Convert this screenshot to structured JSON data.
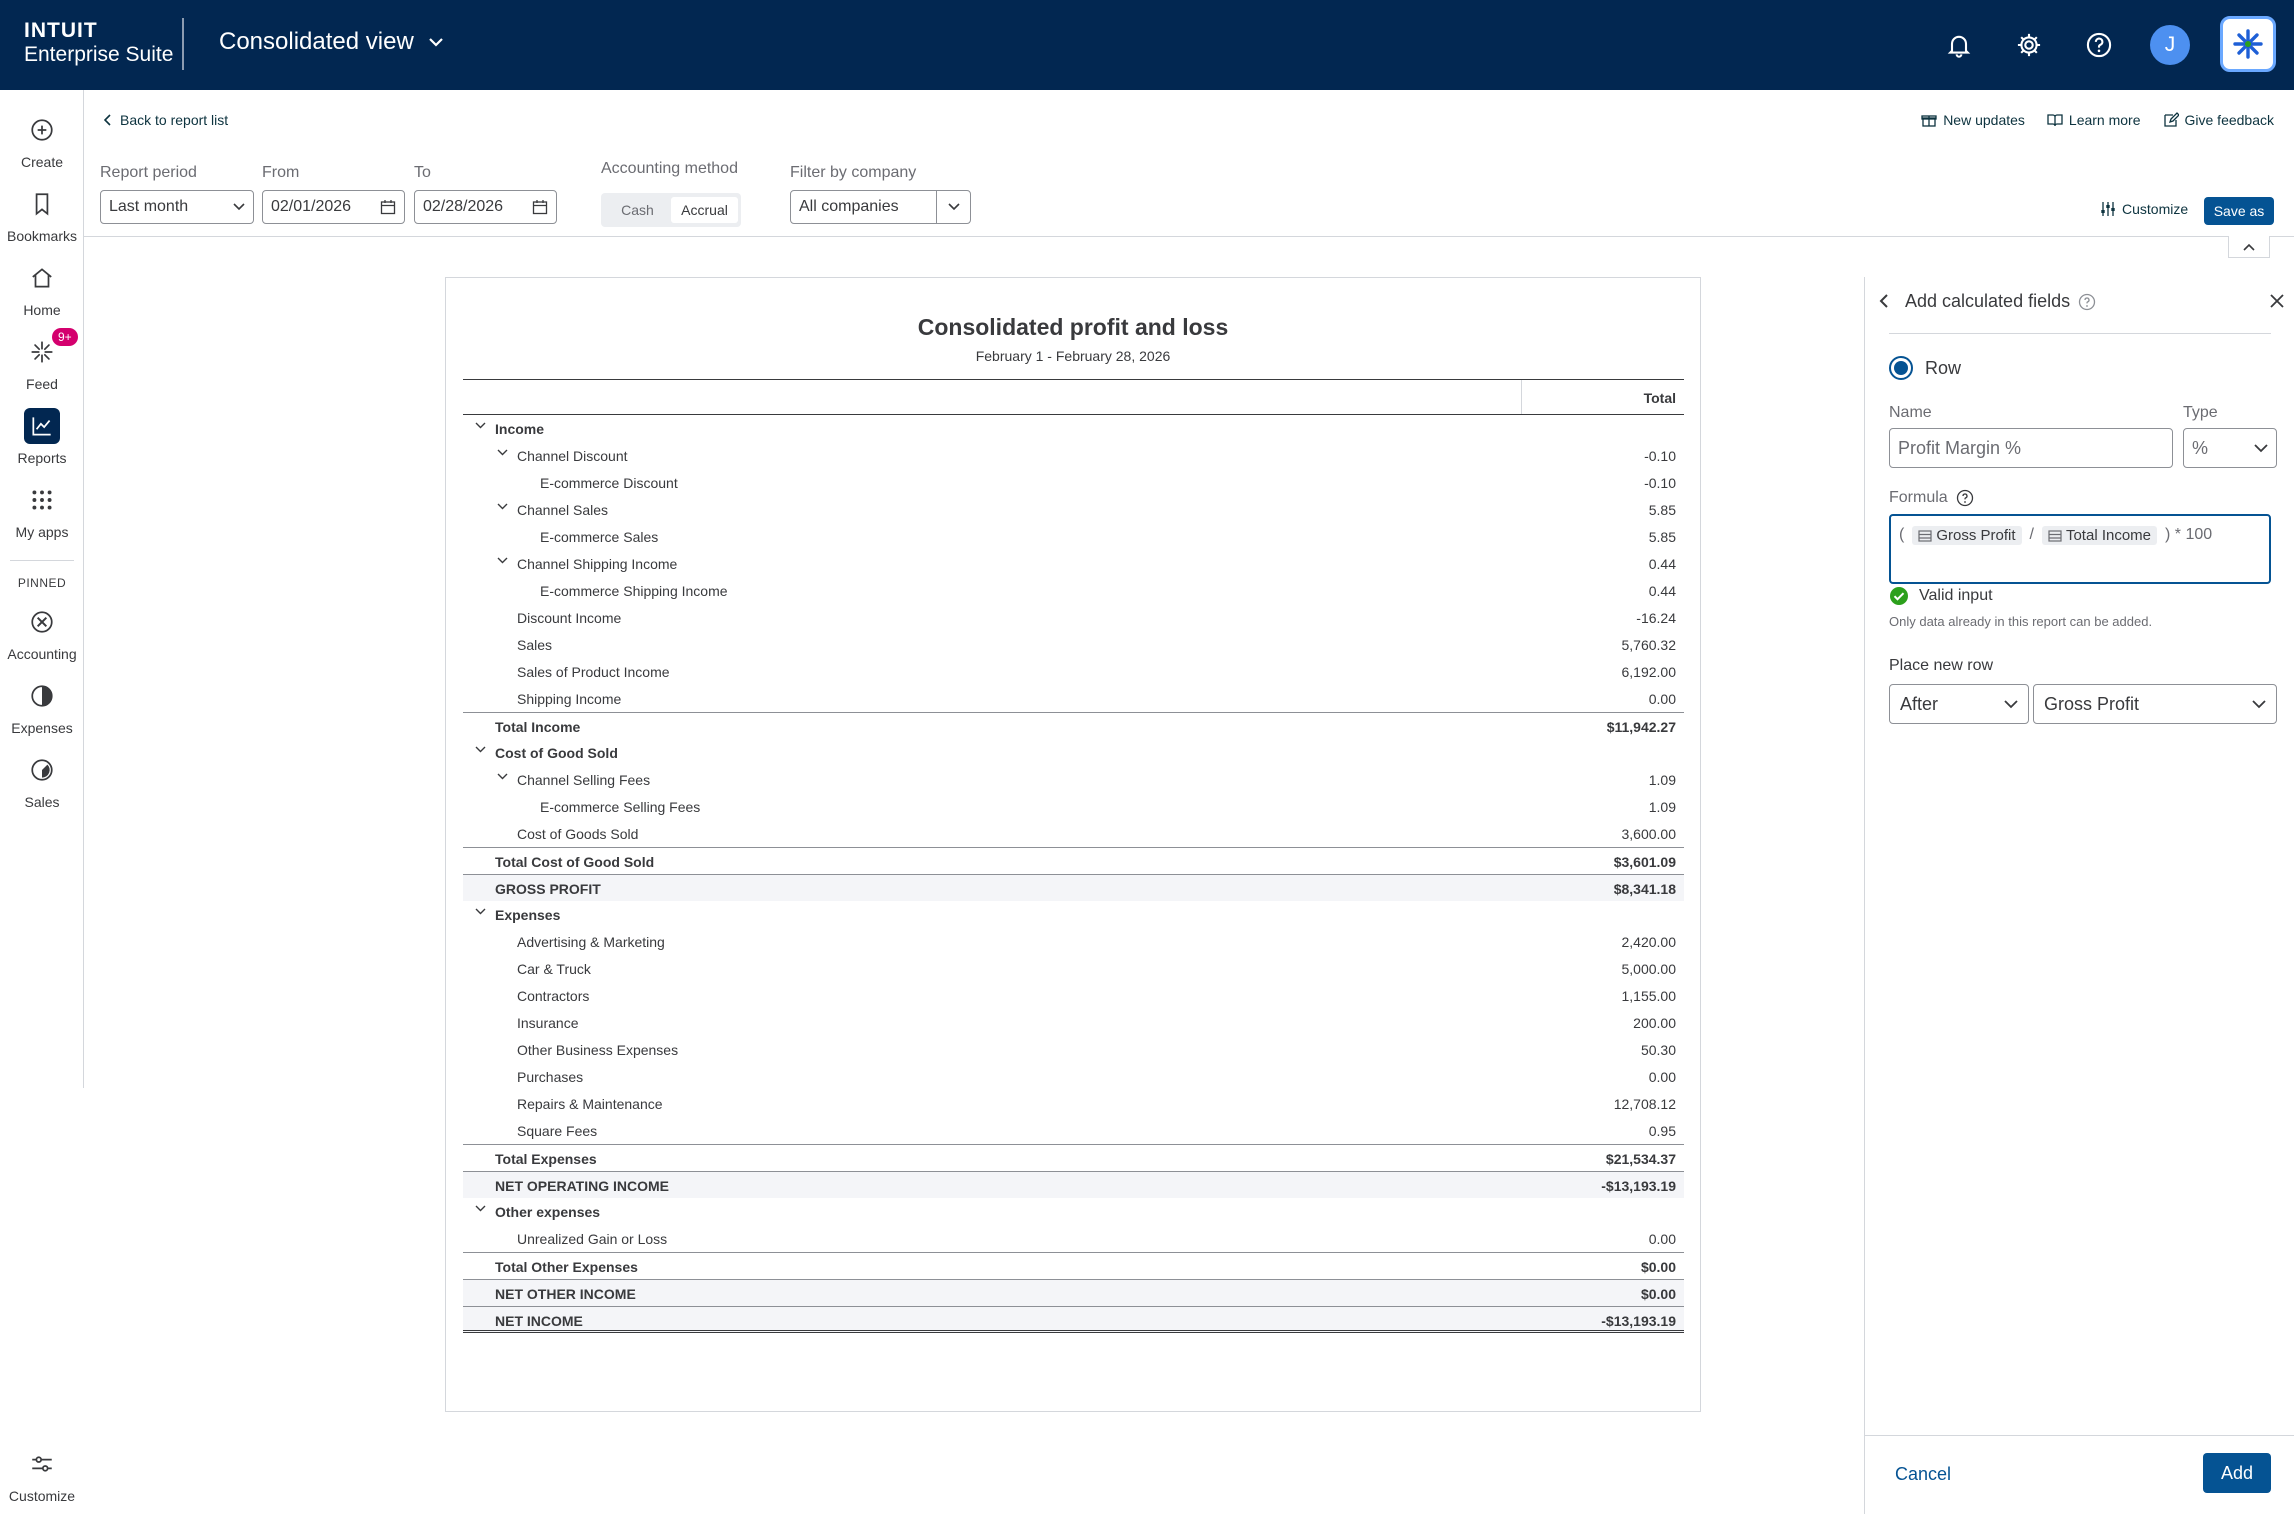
{
  "topbar": {
    "brand_line1": "INTUIT",
    "brand_line2": "Enterprise Suite",
    "view_title": "Consolidated view",
    "avatar_initial": "J"
  },
  "nav": {
    "create": "Create",
    "bookmarks": "Bookmarks",
    "home": "Home",
    "feed": "Feed",
    "feed_badge": "9+",
    "reports": "Reports",
    "myapps": "My apps",
    "pinned_label": "PINNED",
    "accounting": "Accounting",
    "expenses": "Expenses",
    "sales": "Sales",
    "customize": "Customize"
  },
  "header": {
    "back": "Back to report list",
    "new_updates": "New updates",
    "learn_more": "Learn more",
    "give_feedback": "Give feedback",
    "customize": "Customize",
    "save_as": "Save as"
  },
  "filters": {
    "report_period_label": "Report period",
    "report_period": "Last month",
    "from_label": "From",
    "from": "02/01/2026",
    "to_label": "To",
    "to": "02/28/2026",
    "method_label": "Accounting method",
    "method_cash": "Cash",
    "method_accrual": "Accrual",
    "company_label": "Filter by company",
    "company": "All companies"
  },
  "report": {
    "title": "Consolidated profit and loss",
    "subtitle": "February 1 - February 28, 2026",
    "col_total": "Total",
    "rows": [
      {
        "label": "Income",
        "value": "",
        "level": 0,
        "toggle": true,
        "style": ""
      },
      {
        "label": "Channel Discount",
        "value": "-0.10",
        "level": 1,
        "toggle": true,
        "style": ""
      },
      {
        "label": "E-commerce Discount",
        "value": "-0.10",
        "level": 2,
        "toggle": false,
        "style": ""
      },
      {
        "label": "Channel Sales",
        "value": "5.85",
        "level": 1,
        "toggle": true,
        "style": ""
      },
      {
        "label": "E-commerce Sales",
        "value": "5.85",
        "level": 2,
        "toggle": false,
        "style": ""
      },
      {
        "label": "Channel Shipping Income",
        "value": "0.44",
        "level": 1,
        "toggle": true,
        "style": ""
      },
      {
        "label": "E-commerce Shipping Income",
        "value": "0.44",
        "level": 2,
        "toggle": false,
        "style": ""
      },
      {
        "label": "Discount Income",
        "value": "-16.24",
        "level": 1,
        "toggle": false,
        "style": ""
      },
      {
        "label": "Sales",
        "value": "5,760.32",
        "level": 1,
        "toggle": false,
        "style": ""
      },
      {
        "label": "Sales of Product Income",
        "value": "6,192.00",
        "level": 1,
        "toggle": false,
        "style": ""
      },
      {
        "label": "Shipping Income",
        "value": "0.00",
        "level": 1,
        "toggle": false,
        "style": ""
      },
      {
        "label": "Total Income",
        "value": "$11,942.27",
        "level": 0,
        "toggle": false,
        "style": "total"
      },
      {
        "label": "Cost of Good Sold",
        "value": "",
        "level": 0,
        "toggle": true,
        "style": ""
      },
      {
        "label": "Channel Selling Fees",
        "value": "1.09",
        "level": 1,
        "toggle": true,
        "style": ""
      },
      {
        "label": "E-commerce Selling Fees",
        "value": "1.09",
        "level": 2,
        "toggle": false,
        "style": ""
      },
      {
        "label": "Cost of Goods Sold",
        "value": "3,600.00",
        "level": 1,
        "toggle": false,
        "style": ""
      },
      {
        "label": "Total Cost of Good Sold",
        "value": "$3,601.09",
        "level": 0,
        "toggle": false,
        "style": "total"
      },
      {
        "label": "GROSS PROFIT",
        "value": "$8,341.18",
        "level": 0,
        "toggle": false,
        "style": "grand"
      },
      {
        "label": "Expenses",
        "value": "",
        "level": 0,
        "toggle": true,
        "style": ""
      },
      {
        "label": "Advertising & Marketing",
        "value": "2,420.00",
        "level": 1,
        "toggle": false,
        "style": ""
      },
      {
        "label": "Car & Truck",
        "value": "5,000.00",
        "level": 1,
        "toggle": false,
        "style": ""
      },
      {
        "label": "Contractors",
        "value": "1,155.00",
        "level": 1,
        "toggle": false,
        "style": ""
      },
      {
        "label": "Insurance",
        "value": "200.00",
        "level": 1,
        "toggle": false,
        "style": ""
      },
      {
        "label": "Other Business Expenses",
        "value": "50.30",
        "level": 1,
        "toggle": false,
        "style": ""
      },
      {
        "label": "Purchases",
        "value": "0.00",
        "level": 1,
        "toggle": false,
        "style": ""
      },
      {
        "label": "Repairs & Maintenance",
        "value": "12,708.12",
        "level": 1,
        "toggle": false,
        "style": ""
      },
      {
        "label": "Square Fees",
        "value": "0.95",
        "level": 1,
        "toggle": false,
        "style": ""
      },
      {
        "label": "Total Expenses",
        "value": "$21,534.37",
        "level": 0,
        "toggle": false,
        "style": "total"
      },
      {
        "label": "NET OPERATING INCOME",
        "value": "-$13,193.19",
        "level": 0,
        "toggle": false,
        "style": "grand"
      },
      {
        "label": "Other expenses",
        "value": "",
        "level": 0,
        "toggle": true,
        "style": ""
      },
      {
        "label": "Unrealized Gain or Loss",
        "value": "0.00",
        "level": 1,
        "toggle": false,
        "style": ""
      },
      {
        "label": "Total Other Expenses",
        "value": "$0.00",
        "level": 0,
        "toggle": false,
        "style": "total"
      },
      {
        "label": "NET OTHER INCOME",
        "value": "$0.00",
        "level": 0,
        "toggle": false,
        "style": "grand"
      },
      {
        "label": "NET INCOME",
        "value": "-$13,193.19",
        "level": 0,
        "toggle": false,
        "style": "final"
      }
    ]
  },
  "panel": {
    "title": "Add calculated fields",
    "row_option": "Row",
    "name_label": "Name",
    "name_value": "Profit Margin %",
    "type_label": "Type",
    "type_value": "%",
    "formula_label": "Formula",
    "formula_open": "(",
    "chip1": "Gross Profit",
    "divide": "/",
    "chip2": "Total Income",
    "formula_close": ") * 100",
    "valid_text": "Valid input",
    "hint": "Only data already in this report can be added.",
    "place_label": "Place new row",
    "place_position": "After",
    "place_target": "Gross Profit",
    "cancel": "Cancel",
    "add": "Add"
  },
  "colors": {
    "topbar": "#022751",
    "primary": "#055393",
    "badge": "#d4006e",
    "valid": "#2ca01c"
  }
}
